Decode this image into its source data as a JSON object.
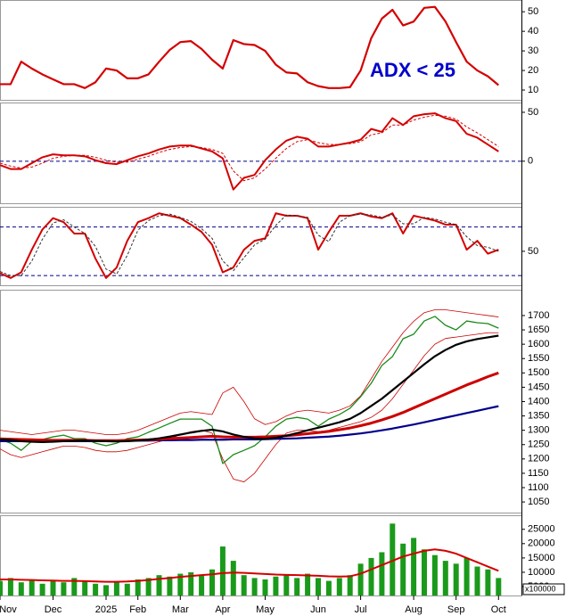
{
  "chart_data": [
    {
      "type": "line",
      "annotation": "ADX < 25",
      "ylim": [
        5,
        56
      ],
      "yticks": [
        10,
        20,
        30,
        40,
        50
      ],
      "series": [
        {
          "color": "#d40000",
          "width": 2.2,
          "values": [
            13,
            13,
            24.5,
            21,
            18,
            15.5,
            13,
            13,
            11,
            14,
            21,
            20,
            16,
            16,
            18,
            24.5,
            30.5,
            34.5,
            35,
            31,
            25.5,
            21,
            35.5,
            33.5,
            33,
            30,
            23,
            19,
            18.5,
            14,
            12,
            11,
            11,
            11.5,
            20,
            36.5,
            46.5,
            51,
            43,
            45,
            52,
            52.5,
            45,
            34.5,
            24.5,
            20,
            17,
            12.5
          ]
        }
      ]
    },
    {
      "type": "line",
      "ylim": [
        -43,
        60
      ],
      "yticks": [
        0,
        50
      ],
      "hlines": [
        0
      ],
      "series": [
        {
          "color": "#d40000",
          "width": 2,
          "values": [
            -4,
            -8,
            -8,
            -2,
            4,
            7,
            6,
            6,
            5,
            1,
            -2,
            -3,
            1,
            5,
            8,
            12,
            15,
            16,
            16,
            13,
            10,
            3,
            -29,
            -17,
            -14,
            1,
            12,
            21,
            25,
            23,
            15,
            15,
            17,
            19,
            22,
            33,
            30,
            44,
            37,
            46,
            48,
            49,
            44,
            41,
            28,
            24,
            17,
            10
          ]
        },
        {
          "color": "#d40000",
          "width": 1,
          "style": "dashed",
          "values": [
            -2,
            -5,
            -7,
            -6,
            -2,
            3,
            5,
            6,
            6,
            4,
            1,
            -1,
            -1,
            2,
            5,
            9,
            12,
            14,
            15,
            14,
            12,
            8,
            -10,
            -20,
            -17,
            -8,
            3,
            13,
            20,
            22,
            19,
            17,
            17,
            18,
            20,
            27,
            29,
            37,
            37,
            42,
            45,
            47,
            46,
            43,
            35,
            29,
            22,
            15
          ]
        }
      ]
    },
    {
      "type": "line",
      "ylim": [
        8,
        105
      ],
      "yticks": [
        50
      ],
      "hlines": [
        80,
        20
      ],
      "series": [
        {
          "color": "#d40000",
          "width": 2,
          "values": [
            23,
            17,
            24,
            52,
            77,
            91,
            86,
            72,
            72,
            41,
            17,
            30,
            63,
            86,
            91,
            97,
            94,
            91,
            83,
            74,
            58,
            24,
            30,
            52,
            63,
            66,
            97,
            94,
            94,
            91,
            52,
            74,
            94,
            94,
            97,
            93,
            91,
            97,
            72,
            94,
            91,
            88,
            83,
            83,
            52,
            63,
            47,
            52
          ]
        },
        {
          "color": "#333333",
          "width": 1,
          "style": "dashed",
          "values": [
            25,
            20,
            20,
            38,
            65,
            85,
            89,
            80,
            72,
            56,
            28,
            22,
            45,
            76,
            88,
            94,
            96,
            92,
            87,
            78,
            66,
            38,
            26,
            42,
            58,
            65,
            82,
            95,
            94,
            92,
            70,
            62,
            86,
            94,
            96,
            95,
            92,
            95,
            84,
            84,
            92,
            90,
            86,
            83,
            68,
            57,
            55,
            50
          ]
        }
      ]
    },
    {
      "type": "line",
      "ylim": [
        1013,
        1790
      ],
      "yticks": [
        1050,
        1100,
        1150,
        1200,
        1250,
        1300,
        1350,
        1400,
        1450,
        1500,
        1550,
        1600,
        1650,
        1700
      ],
      "series": [
        {
          "color": "#cc0000",
          "width": 0.8,
          "values": [
            1300,
            1295,
            1290,
            1285,
            1290,
            1295,
            1300,
            1300,
            1295,
            1290,
            1285,
            1285,
            1290,
            1300,
            1315,
            1330,
            1345,
            1360,
            1365,
            1360,
            1355,
            1430,
            1450,
            1400,
            1340,
            1320,
            1330,
            1350,
            1365,
            1370,
            1365,
            1360,
            1370,
            1385,
            1420,
            1480,
            1540,
            1590,
            1640,
            1680,
            1710,
            1720,
            1720,
            1715,
            1710,
            1705,
            1700,
            1695
          ]
        },
        {
          "color": "#cc0000",
          "width": 0.8,
          "values": [
            1235,
            1215,
            1205,
            1215,
            1225,
            1235,
            1245,
            1245,
            1240,
            1230,
            1225,
            1225,
            1230,
            1240,
            1250,
            1260,
            1270,
            1285,
            1295,
            1300,
            1290,
            1200,
            1130,
            1120,
            1150,
            1200,
            1250,
            1290,
            1300,
            1300,
            1295,
            1300,
            1310,
            1320,
            1330,
            1345,
            1370,
            1410,
            1460,
            1510,
            1560,
            1600,
            1620,
            1625,
            1630,
            1635,
            1640,
            1640
          ]
        },
        {
          "color": "#1a8a1a",
          "width": 1.3,
          "values": [
            1268,
            1255,
            1230,
            1262,
            1268,
            1277,
            1283,
            1271,
            1271,
            1255,
            1246,
            1255,
            1271,
            1277,
            1293,
            1308,
            1324,
            1339,
            1339,
            1339,
            1314,
            1184,
            1215,
            1230,
            1246,
            1277,
            1314,
            1339,
            1345,
            1339,
            1314,
            1339,
            1355,
            1377,
            1417,
            1464,
            1526,
            1557,
            1619,
            1635,
            1681,
            1697,
            1666,
            1650,
            1681,
            1675,
            1672,
            1656
          ]
        },
        {
          "color": "#00008b",
          "width": 2.2,
          "values": [
            1262,
            1262,
            1262,
            1262,
            1262,
            1262,
            1262,
            1262,
            1262,
            1262,
            1263,
            1263,
            1263,
            1264,
            1264,
            1265,
            1265,
            1266,
            1266,
            1267,
            1267,
            1267,
            1268,
            1268,
            1268,
            1269,
            1270,
            1271,
            1272,
            1274,
            1276,
            1278,
            1281,
            1285,
            1289,
            1294,
            1300,
            1306,
            1313,
            1320,
            1328,
            1336,
            1344,
            1352,
            1360,
            1368,
            1376,
            1384
          ]
        },
        {
          "color": "#cc0000",
          "width": 3,
          "values": [
            1270,
            1269,
            1268,
            1267,
            1266,
            1265,
            1265,
            1265,
            1265,
            1264,
            1264,
            1264,
            1265,
            1266,
            1267,
            1269,
            1271,
            1273,
            1275,
            1277,
            1279,
            1277,
            1276,
            1276,
            1276,
            1277,
            1279,
            1281,
            1284,
            1288,
            1292,
            1296,
            1302,
            1308,
            1316,
            1325,
            1336,
            1348,
            1362,
            1378,
            1394,
            1410,
            1426,
            1442,
            1458,
            1472,
            1487,
            1500
          ]
        },
        {
          "color": "#000000",
          "width": 2.2,
          "values": [
            1268,
            1266,
            1262,
            1260,
            1259,
            1260,
            1262,
            1263,
            1264,
            1263,
            1262,
            1261,
            1262,
            1264,
            1267,
            1272,
            1278,
            1285,
            1292,
            1298,
            1302,
            1296,
            1285,
            1277,
            1272,
            1270,
            1274,
            1281,
            1290,
            1300,
            1309,
            1318,
            1328,
            1340,
            1360,
            1385,
            1410,
            1440,
            1470,
            1500,
            1530,
            1558,
            1580,
            1598,
            1610,
            1618,
            1624,
            1630
          ]
        }
      ]
    },
    {
      "type": "bar",
      "unit_label": "x100000",
      "ylim": [
        1900,
        29900
      ],
      "yticks": [
        5000,
        10000,
        15000,
        20000,
        25000
      ],
      "categories": [
        "Nov",
        null,
        null,
        null,
        null,
        "Dec",
        null,
        null,
        null,
        null,
        "2025",
        null,
        null,
        "Feb",
        null,
        null,
        null,
        "Mar",
        null,
        null,
        null,
        "Apr",
        null,
        null,
        null,
        "May",
        null,
        null,
        null,
        null,
        "Jun",
        null,
        null,
        null,
        "Jul",
        null,
        null,
        null,
        null,
        "Aug",
        null,
        null,
        null,
        "Sep",
        null,
        null,
        null,
        "Oct"
      ],
      "series": [
        {
          "color": "#1a9a1a",
          "values": [
            7000,
            8000,
            6500,
            7500,
            6000,
            7000,
            6500,
            8000,
            7000,
            6000,
            5500,
            6500,
            6000,
            7500,
            8000,
            9000,
            8500,
            9500,
            10000,
            9000,
            11000,
            19000,
            14000,
            9000,
            8000,
            7500,
            8500,
            9000,
            8000,
            9500,
            8000,
            7000,
            8000,
            9000,
            13000,
            15000,
            17000,
            27000,
            20000,
            22000,
            18000,
            16000,
            14000,
            13000,
            15000,
            12000,
            11000,
            8000
          ]
        },
        {
          "type": "line",
          "color": "#d40000",
          "width": 2,
          "values": [
            7500,
            7500,
            7400,
            7300,
            7200,
            7100,
            7000,
            7000,
            6900,
            6800,
            6700,
            6700,
            6800,
            7000,
            7300,
            7700,
            8000,
            8400,
            8700,
            9000,
            9300,
            9700,
            9900,
            9800,
            9600,
            9400,
            9200,
            9100,
            9000,
            8900,
            8800,
            8600,
            8500,
            8600,
            9500,
            11000,
            12500,
            14000,
            15500,
            16500,
            17500,
            18000,
            17500,
            16500,
            15000,
            13500,
            12000,
            10500
          ]
        }
      ]
    }
  ]
}
